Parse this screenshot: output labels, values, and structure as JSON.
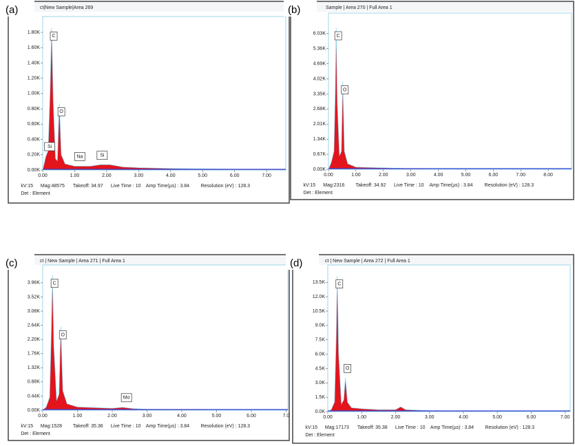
{
  "chart_data": [
    {
      "type": "area",
      "panel": "(a)",
      "title": "ct|New Sample|Area 269",
      "color": "#e3141c",
      "xlim": [
        0,
        7.6
      ],
      "ylim": [
        0,
        1.98
      ],
      "xticks": [
        {
          "value": 0,
          "label": "0.00"
        },
        {
          "value": 1,
          "label": "1.00"
        },
        {
          "value": 2,
          "label": "2.00"
        },
        {
          "value": 3,
          "label": "3.00"
        },
        {
          "value": 4,
          "label": "4.00"
        },
        {
          "value": 5,
          "label": "5.00"
        },
        {
          "value": 6,
          "label": "6.00"
        },
        {
          "value": 7,
          "label": "7.00"
        }
      ],
      "yticks": [
        {
          "value": 0,
          "label": "0.00K"
        },
        {
          "value": 0.2,
          "label": "0.20K"
        },
        {
          "value": 0.4,
          "label": "0.40K"
        },
        {
          "value": 0.6,
          "label": "0.60K"
        },
        {
          "value": 0.8,
          "label": "0.80K"
        },
        {
          "value": 1,
          "label": "1.00K"
        },
        {
          "value": 1.2,
          "label": "1.20K"
        },
        {
          "value": 1.4,
          "label": "1.40K"
        },
        {
          "value": 1.6,
          "label": "1.60K"
        },
        {
          "value": 1.8,
          "label": "1.80K"
        }
      ],
      "x": [
        0,
        0.1,
        0.17,
        0.23,
        0.28,
        0.33,
        0.4,
        0.46,
        0.52,
        0.58,
        0.7,
        1.0,
        1.5,
        1.8,
        2.1,
        2.5,
        3,
        4,
        5,
        6,
        7,
        7.6
      ],
      "values": [
        0,
        0.18,
        0.25,
        1.0,
        1.86,
        0.9,
        0.15,
        0.12,
        0.87,
        0.2,
        0.08,
        0.05,
        0.05,
        0.07,
        0.07,
        0.04,
        0.03,
        0.02,
        0.015,
        0.01,
        0.01,
        0.01
      ],
      "annotations": [
        {
          "text": "C",
          "x": 0.28
        },
        {
          "text": "O",
          "x": 0.52
        },
        {
          "text": "Si",
          "x": 0.1
        },
        {
          "text": "Na",
          "x": 1.04
        },
        {
          "text": "Si",
          "x": 1.74
        }
      ],
      "footer": [
        "kV:15",
        "Mag:48575",
        "Takeoff: 34.97",
        "Live Time : 10",
        "Amp Time(µs) : 3.84",
        "Resolution (eV) : 128.3"
      ],
      "detector": "Det : Element"
    },
    {
      "type": "area",
      "panel": "(b)",
      "title": "Sample | Area 270 | Full Area 1",
      "color": "#e3141c",
      "xlim": [
        0,
        8.85
      ],
      "ylim": [
        0,
        6.85
      ],
      "xticks": [
        {
          "value": 0,
          "label": "0.00"
        },
        {
          "value": 1,
          "label": "1.00"
        },
        {
          "value": 2,
          "label": "2.00"
        },
        {
          "value": 3,
          "label": "3.00"
        },
        {
          "value": 4,
          "label": "4.00"
        },
        {
          "value": 5,
          "label": "5.00"
        },
        {
          "value": 6,
          "label": "6.00"
        },
        {
          "value": 7,
          "label": "7.00"
        },
        {
          "value": 8,
          "label": "8.00"
        }
      ],
      "yticks": [
        {
          "value": 0,
          "label": "0.00K"
        },
        {
          "value": 0.67,
          "label": "0.67K"
        },
        {
          "value": 1.34,
          "label": "1.34K"
        },
        {
          "value": 2.01,
          "label": "2.01K"
        },
        {
          "value": 2.68,
          "label": "2.68K"
        },
        {
          "value": 3.35,
          "label": "3.35K"
        },
        {
          "value": 4.02,
          "label": "4.02K"
        },
        {
          "value": 4.69,
          "label": "4.69K"
        },
        {
          "value": 5.36,
          "label": "5.36K"
        },
        {
          "value": 6.03,
          "label": "6.03K"
        }
      ],
      "x": [
        0,
        0.1,
        0.2,
        0.25,
        0.28,
        0.32,
        0.4,
        0.47,
        0.52,
        0.58,
        0.7,
        1.0,
        1.5,
        2.2,
        3,
        4,
        5,
        6,
        7,
        8,
        8.85
      ],
      "values": [
        0,
        0.3,
        0.8,
        3.5,
        6.3,
        3.0,
        0.6,
        0.8,
        3.9,
        0.8,
        0.25,
        0.1,
        0.08,
        0.06,
        0.03,
        0.02,
        0.015,
        0.01,
        0.01,
        0.01,
        0.01
      ],
      "annotations": [
        {
          "text": "C",
          "x": 0.28
        },
        {
          "text": "O",
          "x": 0.52
        }
      ],
      "footer": [
        "kV:15",
        "Mag:2316",
        "Takeoff: 34.92",
        "Live Time : 10",
        "Amp Time(µs) : 3.84",
        "Resolution (eV) : 128.3"
      ],
      "detector": "Det : Element"
    },
    {
      "type": "area",
      "panel": "(c)",
      "title": "ct | New Sample | Area 271 | Full Area 1",
      "color": "#e3141c",
      "xlim": [
        0,
        7.05
      ],
      "ylim": [
        0,
        4.45
      ],
      "xticks": [
        {
          "value": 0,
          "label": "0.00"
        },
        {
          "value": 1,
          "label": "1.00"
        },
        {
          "value": 2,
          "label": "2.00"
        },
        {
          "value": 3,
          "label": "3.00"
        },
        {
          "value": 4,
          "label": "4.00"
        },
        {
          "value": 5,
          "label": "5.00"
        },
        {
          "value": 6,
          "label": "6.00"
        },
        {
          "value": 7,
          "label": "7.0"
        }
      ],
      "yticks": [
        {
          "value": 0,
          "label": "0.00K"
        },
        {
          "value": 0.44,
          "label": "0.44K"
        },
        {
          "value": 0.88,
          "label": "0.88K"
        },
        {
          "value": 1.32,
          "label": "1.32K"
        },
        {
          "value": 1.76,
          "label": "1.76K"
        },
        {
          "value": 2.2,
          "label": "2.20K"
        },
        {
          "value": 2.64,
          "label": "2.64K"
        },
        {
          "value": 3.08,
          "label": "3.08K"
        },
        {
          "value": 3.52,
          "label": "3.52K"
        },
        {
          "value": 3.96,
          "label": "3.96K"
        }
      ],
      "x": [
        0,
        0.1,
        0.2,
        0.25,
        0.28,
        0.32,
        0.4,
        0.47,
        0.52,
        0.58,
        0.7,
        1.0,
        1.5,
        2.0,
        2.3,
        2.6,
        3,
        4,
        5,
        6,
        7.05
      ],
      "values": [
        0,
        0.1,
        0.4,
        2.5,
        4.2,
        2.0,
        0.3,
        0.5,
        2.6,
        0.6,
        0.2,
        0.1,
        0.08,
        0.06,
        0.09,
        0.05,
        0.03,
        0.02,
        0.015,
        0.01,
        0.01
      ],
      "annotations": [
        {
          "text": "C",
          "x": 0.28
        },
        {
          "text": "O",
          "x": 0.52
        },
        {
          "text": "Mo",
          "x": 2.3
        }
      ],
      "footer": [
        "kV:15",
        "Mag:1528",
        "Takeoff: 35.36",
        "Live Time : 10",
        "Amp Time(µs) : 3.84",
        "Resolution (eV) : 128.3"
      ],
      "detector": "Det : Element"
    },
    {
      "type": "area",
      "panel": "(d)",
      "title": "ct | New Sample | Area 272 | Full Area 1",
      "color": "#e3141c",
      "xlim": [
        0,
        7.15
      ],
      "ylim": [
        0,
        15.1
      ],
      "xticks": [
        {
          "value": 0,
          "label": "0.00"
        },
        {
          "value": 1,
          "label": "1.00"
        },
        {
          "value": 2,
          "label": "2.00"
        },
        {
          "value": 3,
          "label": "3.00"
        },
        {
          "value": 4,
          "label": "4.00"
        },
        {
          "value": 5,
          "label": "5.00"
        },
        {
          "value": 6,
          "label": "6.00"
        },
        {
          "value": 7,
          "label": "7.00"
        }
      ],
      "yticks": [
        {
          "value": 0,
          "label": "0.0K"
        },
        {
          "value": 1.5,
          "label": "1.5K"
        },
        {
          "value": 3,
          "label": "3.0K"
        },
        {
          "value": 4.5,
          "label": "4.5K"
        },
        {
          "value": 6,
          "label": "6.0K"
        },
        {
          "value": 7.5,
          "label": "7.5K"
        },
        {
          "value": 9,
          "label": "9.0K"
        },
        {
          "value": 10.5,
          "label": "10.5K"
        },
        {
          "value": 12,
          "label": "12.0K"
        },
        {
          "value": 13.5,
          "label": "13.5K"
        }
      ],
      "x": [
        0,
        0.1,
        0.2,
        0.25,
        0.28,
        0.32,
        0.4,
        0.47,
        0.52,
        0.58,
        0.7,
        1.0,
        1.5,
        2.0,
        2.15,
        2.3,
        3,
        4,
        5,
        6,
        7.15
      ],
      "values": [
        0,
        0.2,
        1.0,
        8,
        14.2,
        6,
        0.8,
        1.2,
        3.5,
        1.0,
        0.4,
        0.3,
        0.2,
        0.2,
        0.5,
        0.2,
        0.1,
        0.06,
        0.05,
        0.04,
        0.03
      ],
      "annotations": [
        {
          "text": "C",
          "x": 0.28
        },
        {
          "text": "O",
          "x": 0.52
        }
      ],
      "footer": [
        "kV:15",
        "Mag:17173",
        "Takeoff: 35.38",
        "Live Time : 10",
        "Amp Time(µs) : 3.84",
        "Resolution (eV) : 128.3"
      ],
      "detector": "Det : Element"
    }
  ]
}
